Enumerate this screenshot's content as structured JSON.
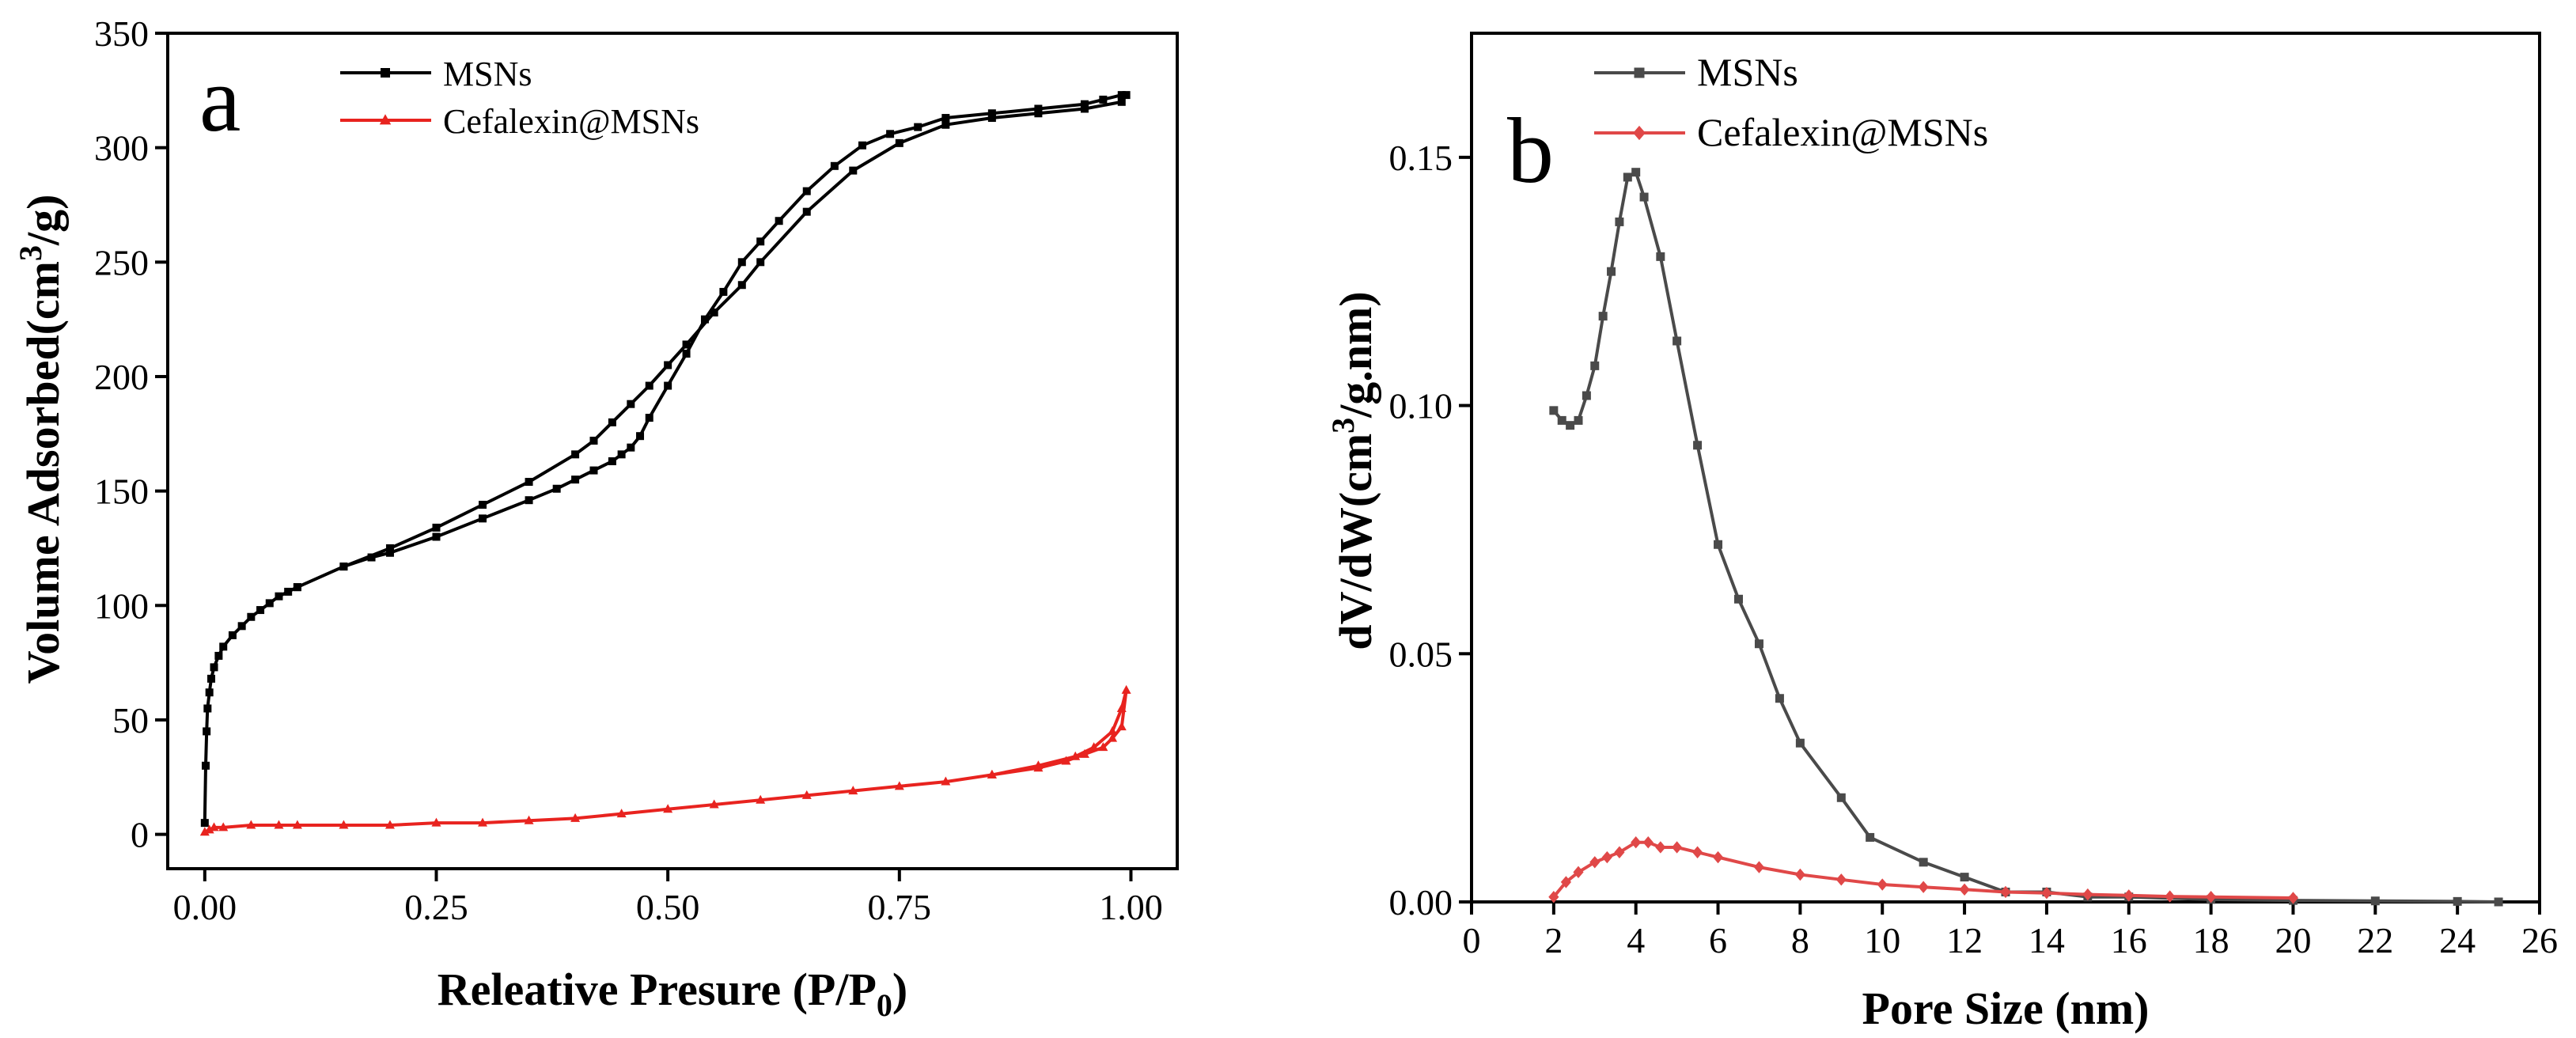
{
  "chart_data": [
    {
      "type": "line",
      "panel_label": "a",
      "xlabel": "Releative Presure (P/P",
      "xlabel_sub": "0",
      "xlabel_close": ")",
      "ylabel": "Volume Adsorbed(cm",
      "ylabel_sup": "3",
      "ylabel_close": "/g)",
      "xlim": [
        -0.04,
        1.05
      ],
      "ylim": [
        -15,
        350
      ],
      "xticks": [
        0.0,
        0.25,
        0.5,
        0.75,
        1.0
      ],
      "xtick_labels": [
        "0.00",
        "0.25",
        "0.50",
        "0.75",
        "1.00"
      ],
      "yticks": [
        0,
        50,
        100,
        150,
        200,
        250,
        300,
        350
      ],
      "ytick_labels": [
        "0",
        "50",
        "100",
        "150",
        "200",
        "250",
        "300",
        "350"
      ],
      "legend_position": "top-center",
      "series": [
        {
          "name": "MSNs",
          "color": "#000000",
          "marker": "square",
          "x": [
            0.0,
            0.001,
            0.002,
            0.003,
            0.005,
            0.007,
            0.01,
            0.015,
            0.02,
            0.03,
            0.04,
            0.05,
            0.06,
            0.07,
            0.08,
            0.09,
            0.1,
            0.15,
            0.2,
            0.25,
            0.3,
            0.35,
            0.4,
            0.42,
            0.44,
            0.46,
            0.48,
            0.5,
            0.52,
            0.55,
            0.58,
            0.6,
            0.65,
            0.7,
            0.75,
            0.8,
            0.85,
            0.9,
            0.95,
            0.99,
            0.995,
            0.99,
            0.97,
            0.95,
            0.9,
            0.85,
            0.8,
            0.77,
            0.74,
            0.71,
            0.68,
            0.65,
            0.62,
            0.6,
            0.58,
            0.56,
            0.54,
            0.52,
            0.5,
            0.48,
            0.47,
            0.46,
            0.45,
            0.44,
            0.42,
            0.4,
            0.38,
            0.35,
            0.3,
            0.25,
            0.2,
            0.18,
            0.15,
            0.1
          ],
          "y": [
            5,
            30,
            45,
            55,
            62,
            68,
            73,
            78,
            82,
            87,
            91,
            95,
            98,
            101,
            104,
            106,
            108,
            117,
            125,
            134,
            144,
            154,
            166,
            172,
            180,
            188,
            196,
            205,
            214,
            228,
            240,
            250,
            272,
            290,
            302,
            310,
            313,
            315,
            317,
            320,
            323,
            323,
            321,
            319,
            317,
            315,
            313,
            309,
            306,
            301,
            292,
            281,
            268,
            259,
            250,
            237,
            225,
            210,
            196,
            182,
            174,
            169,
            166,
            163,
            159,
            155,
            151,
            146,
            138,
            130,
            123,
            121,
            117,
            108
          ]
        },
        {
          "name": "Cefalexin@MSNs",
          "color": "#e8231f",
          "marker": "triangle",
          "x": [
            0.0,
            0.005,
            0.01,
            0.02,
            0.05,
            0.08,
            0.1,
            0.15,
            0.2,
            0.25,
            0.3,
            0.35,
            0.4,
            0.45,
            0.5,
            0.55,
            0.6,
            0.65,
            0.7,
            0.75,
            0.8,
            0.85,
            0.9,
            0.93,
            0.95,
            0.97,
            0.98,
            0.99,
            0.995,
            0.99,
            0.98,
            0.96,
            0.94,
            0.9,
            0.85
          ],
          "y": [
            1,
            2,
            3,
            3,
            4,
            4,
            4,
            4,
            4,
            5,
            5,
            6,
            7,
            9,
            11,
            13,
            15,
            17,
            19,
            21,
            23,
            26,
            29,
            32,
            35,
            38,
            42,
            47,
            63,
            55,
            45,
            38,
            34,
            30,
            26
          ]
        }
      ]
    },
    {
      "type": "line",
      "panel_label": "b",
      "xlabel": "Pore Size (nm)",
      "ylabel": "dV/dW(cm",
      "ylabel_sup": "3",
      "ylabel_close": "/g.nm)",
      "xlim": [
        0,
        26
      ],
      "ylim": [
        0,
        0.175
      ],
      "xticks": [
        0,
        2,
        4,
        6,
        8,
        10,
        12,
        14,
        16,
        18,
        20,
        22,
        24,
        26
      ],
      "xtick_labels": [
        "0",
        "2",
        "4",
        "6",
        "8",
        "10",
        "12",
        "14",
        "16",
        "18",
        "20",
        "22",
        "24",
        "26"
      ],
      "yticks": [
        0,
        0.05,
        0.1,
        0.15
      ],
      "ytick_labels": [
        "0.00",
        "0.05",
        "0.10",
        "0.15"
      ],
      "legend_position": "top-center",
      "series": [
        {
          "name": "MSNs",
          "color": "#4a4a4a",
          "marker": "square",
          "x": [
            2.0,
            2.2,
            2.4,
            2.6,
            2.8,
            3.0,
            3.2,
            3.4,
            3.6,
            3.8,
            4.0,
            4.2,
            4.6,
            5.0,
            5.5,
            6.0,
            6.5,
            7.0,
            7.5,
            8.0,
            9.0,
            9.7,
            11.0,
            12.0,
            13.0,
            14.0,
            15.0,
            16.0,
            18.0,
            20.0,
            22.0,
            24.0,
            25.0
          ],
          "y": [
            0.099,
            0.097,
            0.096,
            0.097,
            0.102,
            0.108,
            0.118,
            0.127,
            0.137,
            0.146,
            0.147,
            0.142,
            0.13,
            0.113,
            0.092,
            0.072,
            0.061,
            0.052,
            0.041,
            0.032,
            0.021,
            0.013,
            0.008,
            0.005,
            0.002,
            0.002,
            0.001,
            0.001,
            0.0005,
            0.0003,
            0.0002,
            0.0001,
            0.0
          ]
        },
        {
          "name": "Cefalexin@MSNs",
          "color": "#e04848",
          "marker": "diamond",
          "x": [
            2.0,
            2.3,
            2.6,
            3.0,
            3.3,
            3.6,
            4.0,
            4.3,
            4.6,
            5.0,
            5.5,
            6.0,
            7.0,
            8.0,
            9.0,
            10.0,
            11.0,
            12.0,
            13.0,
            14.0,
            15.0,
            16.0,
            17.0,
            18.0,
            20.0
          ],
          "y": [
            0.001,
            0.004,
            0.006,
            0.008,
            0.009,
            0.01,
            0.012,
            0.012,
            0.011,
            0.011,
            0.01,
            0.009,
            0.007,
            0.0055,
            0.0045,
            0.0035,
            0.003,
            0.0025,
            0.002,
            0.0018,
            0.0015,
            0.0013,
            0.0011,
            0.001,
            0.0008
          ]
        }
      ]
    }
  ]
}
